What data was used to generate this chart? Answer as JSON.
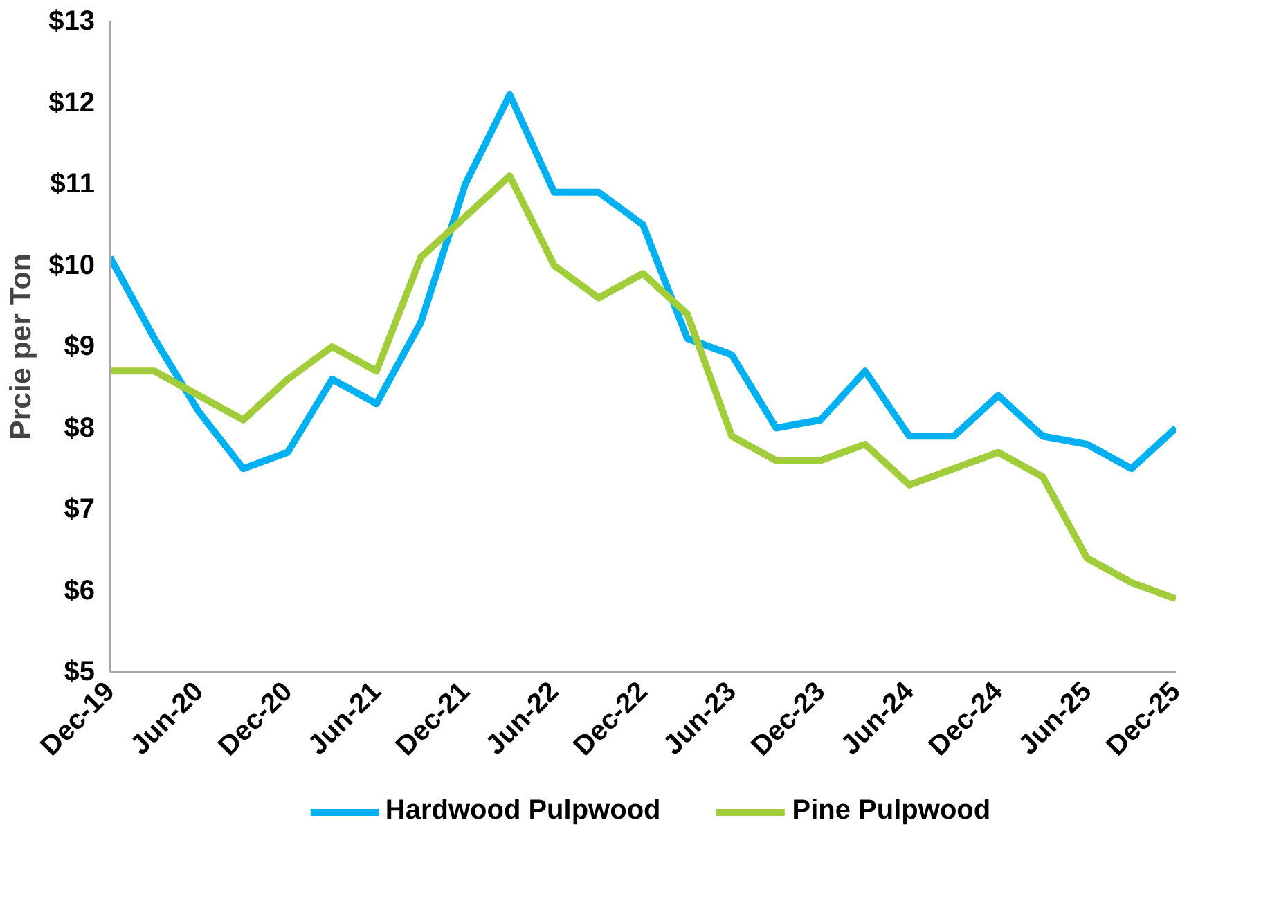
{
  "chart_data": {
    "type": "line",
    "ylabel": "Prcie per Ton",
    "categories": [
      "Dec-19",
      null,
      "Jun-20",
      null,
      "Dec-20",
      null,
      "Jun-21",
      null,
      "Dec-21",
      null,
      "Jun-22",
      null,
      "Dec-22",
      null,
      "Jun-23",
      null,
      "Dec-23",
      null,
      "Jun-24",
      null,
      "Dec-24",
      null,
      "Jun-25",
      null,
      "Dec-25"
    ],
    "series": [
      {
        "name": "Hardwood Pulpwood",
        "color": "#00b0f0",
        "values": [
          10.1,
          9.1,
          8.2,
          7.5,
          7.7,
          8.6,
          8.3,
          9.3,
          11.0,
          12.1,
          10.9,
          10.9,
          10.5,
          9.1,
          8.9,
          8.0,
          8.1,
          8.7,
          7.9,
          7.9,
          8.4,
          7.9,
          7.8,
          7.5,
          8.0
        ]
      },
      {
        "name": "Pine Pulpwood",
        "color": "#a2cd3a",
        "values": [
          8.7,
          8.7,
          8.4,
          8.1,
          8.6,
          9.0,
          8.7,
          10.1,
          10.6,
          11.1,
          10.0,
          9.6,
          9.9,
          9.4,
          7.9,
          7.6,
          7.6,
          7.8,
          7.3,
          7.5,
          7.7,
          7.4,
          6.4,
          6.1,
          5.9
        ]
      }
    ],
    "ylim": [
      5,
      13
    ],
    "yticks": [
      {
        "value": 5,
        "label": "$5"
      },
      {
        "value": 6,
        "label": "$6"
      },
      {
        "value": 7,
        "label": "$7"
      },
      {
        "value": 8,
        "label": "$8"
      },
      {
        "value": 9,
        "label": "$9"
      },
      {
        "value": 10,
        "label": "$10"
      },
      {
        "value": 11,
        "label": "$11"
      },
      {
        "value": 12,
        "label": "$12"
      },
      {
        "value": 13,
        "label": "$13"
      }
    ],
    "grid": false,
    "legend": "bottom",
    "marker": "none",
    "line_style": "solid"
  }
}
